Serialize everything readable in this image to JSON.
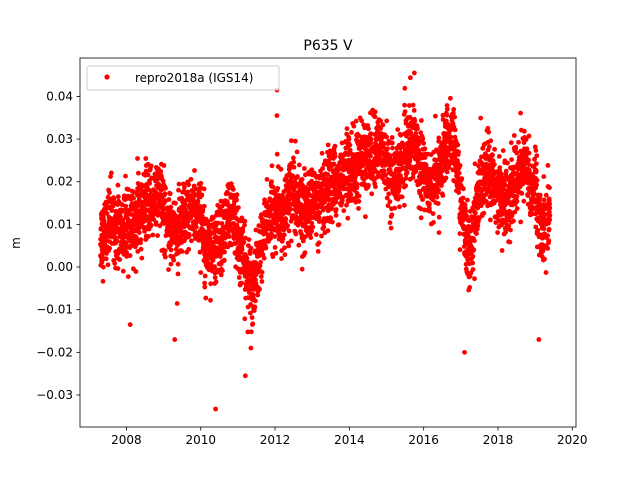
{
  "chart_data": {
    "type": "scatter",
    "title": "P635 V",
    "xlabel": "",
    "ylabel": "m",
    "xlim": [
      2006.75,
      2020.1
    ],
    "ylim": [
      -0.0375,
      0.049
    ],
    "xticks": [
      2008,
      2010,
      2012,
      2014,
      2016,
      2018,
      2020
    ],
    "xtick_labels": [
      "2008",
      "2010",
      "2012",
      "2014",
      "2016",
      "2018",
      "2020"
    ],
    "yticks": [
      -0.03,
      -0.02,
      -0.01,
      0.0,
      0.01,
      0.02,
      0.03,
      0.04
    ],
    "ytick_labels": [
      "−0.03",
      "−0.02",
      "−0.01",
      "0.00",
      "0.01",
      "0.02",
      "0.03",
      "0.04"
    ],
    "grid": false,
    "legend": {
      "placement": "top-left",
      "entries": [
        "repro2018a (IGS14)"
      ]
    },
    "series": [
      {
        "name": "repro2018a (IGS14)",
        "color": "#ff0000",
        "note_on_encoding": "approximate smoothed trend sampled every 0.1 yr from x_start; daily points scattered around it with noise_sd",
        "x_start": 2007.3,
        "x_step": 0.1,
        "trend": [
          0.007,
          0.008,
          0.01,
          0.011,
          0.01,
          0.009,
          0.008,
          0.009,
          0.008,
          0.01,
          0.012,
          0.013,
          0.014,
          0.015,
          0.016,
          0.017,
          0.016,
          0.014,
          0.012,
          0.01,
          0.009,
          0.008,
          0.009,
          0.011,
          0.013,
          0.014,
          0.013,
          0.011,
          0.008,
          0.005,
          0.003,
          0.004,
          0.006,
          0.009,
          0.012,
          0.013,
          0.011,
          0.007,
          0.003,
          0.0,
          -0.003,
          -0.005,
          -0.001,
          0.004,
          0.008,
          0.011,
          0.012,
          0.013,
          0.012,
          0.012,
          0.014,
          0.017,
          0.018,
          0.016,
          0.013,
          0.012,
          0.014,
          0.015,
          0.015,
          0.014,
          0.015,
          0.017,
          0.019,
          0.02,
          0.02,
          0.021,
          0.022,
          0.023,
          0.022,
          0.024,
          0.025,
          0.026,
          0.026,
          0.025,
          0.026,
          0.028,
          0.027,
          0.024,
          0.022,
          0.021,
          0.022,
          0.024,
          0.026,
          0.029,
          0.03,
          0.028,
          0.025,
          0.022,
          0.02,
          0.019,
          0.02,
          0.022,
          0.025,
          0.028,
          0.03,
          0.029,
          0.024,
          0.015,
          0.009,
          0.005,
          0.006,
          0.012,
          0.018,
          0.021,
          0.022,
          0.021,
          0.019,
          0.017,
          0.016,
          0.015,
          0.016,
          0.019,
          0.021,
          0.022,
          0.024,
          0.023,
          0.018,
          0.02,
          0.012,
          0.008,
          0.01,
          0.011
        ],
        "noise_sd": 0.0042,
        "outliers": [
          [
            2011.2,
            -0.0255
          ],
          [
            2010.4,
            -0.0333
          ],
          [
            2017.1,
            -0.02
          ],
          [
            2012.05,
            0.0415
          ],
          [
            2012.05,
            0.0355
          ],
          [
            2015.75,
            0.0455
          ],
          [
            2019.1,
            -0.017
          ],
          [
            2009.3,
            -0.017
          ],
          [
            2008.1,
            -0.0135
          ],
          [
            2011.35,
            -0.019
          ]
        ]
      }
    ]
  }
}
